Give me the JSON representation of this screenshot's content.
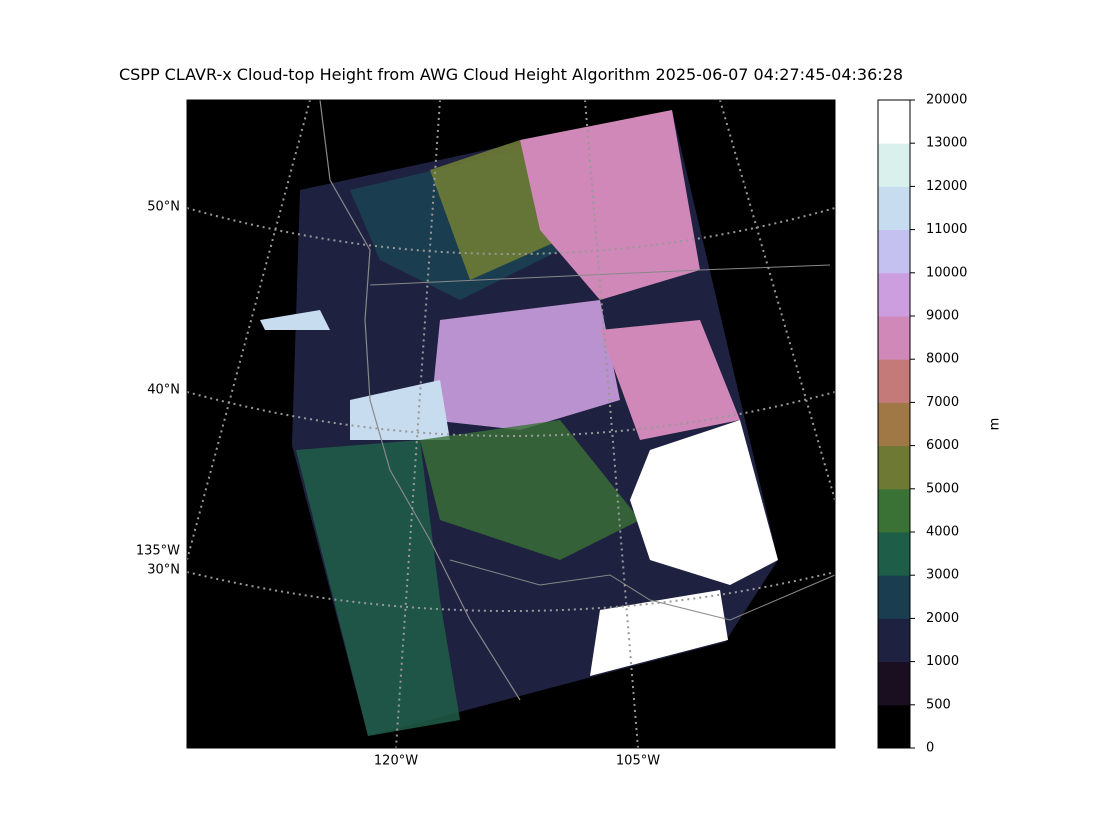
{
  "title": "CSPP CLAVR-x Cloud-top Height from AWG Cloud Height Algorithm 2025-06-07 04:27:45-04:36:28",
  "map": {
    "lat_labels": [
      "50°N",
      "40°N",
      "30°N"
    ],
    "lon_labels": [
      "135°W",
      "120°W",
      "105°W"
    ]
  },
  "colorbar": {
    "label": "m",
    "ticks": [
      0,
      500,
      1000,
      2000,
      3000,
      4000,
      5000,
      6000,
      7000,
      8000,
      9000,
      10000,
      11000,
      12000,
      13000,
      20000
    ],
    "colors": [
      "#000000",
      "#1a0f20",
      "#1e2240",
      "#1a3e50",
      "#1e5e48",
      "#3a7236",
      "#6e7a34",
      "#a07846",
      "#c47a78",
      "#d088b8",
      "#cc9ee0",
      "#c4c0f0",
      "#c8dcf0",
      "#daf0ec",
      "#ffffff"
    ]
  }
}
